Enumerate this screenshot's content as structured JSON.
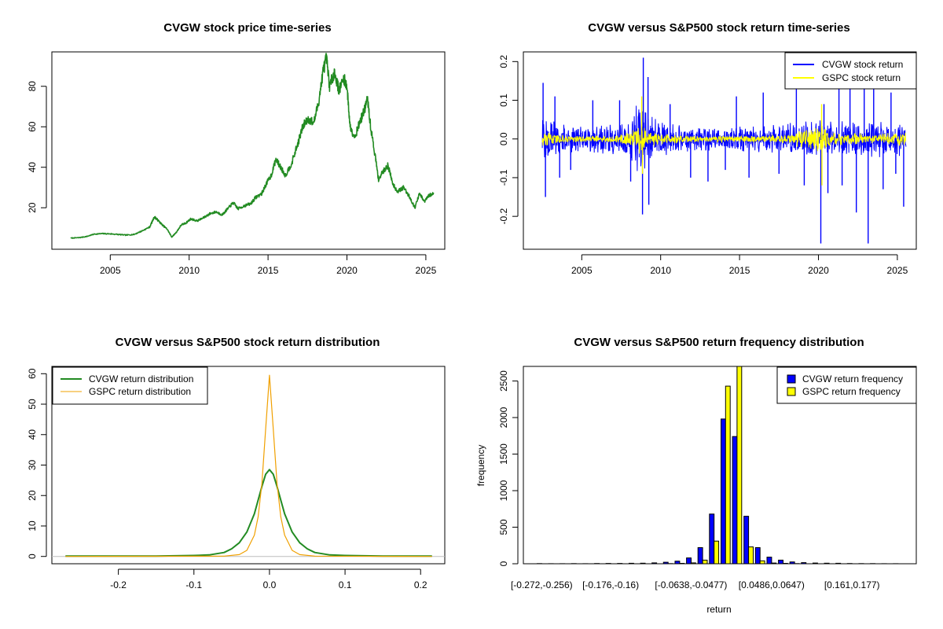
{
  "colors": {
    "cvgw_price": "#228b22",
    "cvgw_return": "#0000ff",
    "gspc_return": "#ffff00",
    "cvgw_density": "#228b22",
    "gspc_density": "#f0a000",
    "bar_outline": "#000000",
    "zero_line": "#bebebe"
  },
  "chart_data": [
    {
      "id": "price",
      "type": "line",
      "title": "CVGW stock price time-series",
      "xlabel": "",
      "ylabel": "",
      "xlim": [
        2001.3,
        2026.2
      ],
      "ylim": [
        -0.5,
        97
      ],
      "x_ticks": [
        2005,
        2010,
        2015,
        2020,
        2025
      ],
      "y_ticks": [
        20,
        40,
        60,
        80
      ],
      "grid": false,
      "series": [
        {
          "color": "#228b22",
          "points": [
            [
              2002.5,
              5
            ],
            [
              2003.0,
              5.2
            ],
            [
              2003.5,
              5.8
            ],
            [
              2004.0,
              7
            ],
            [
              2004.5,
              7.2
            ],
            [
              2005.0,
              7.1
            ],
            [
              2005.5,
              6.8
            ],
            [
              2006.0,
              6.5
            ],
            [
              2006.5,
              6.8
            ],
            [
              2007.0,
              8.5
            ],
            [
              2007.5,
              10.5
            ],
            [
              2007.8,
              15.5
            ],
            [
              2008.0,
              14
            ],
            [
              2008.3,
              11.5
            ],
            [
              2008.6,
              9.5
            ],
            [
              2008.9,
              5.5
            ],
            [
              2009.2,
              8
            ],
            [
              2009.5,
              11.5
            ],
            [
              2009.8,
              12.5
            ],
            [
              2010.1,
              14.5
            ],
            [
              2010.5,
              13.5
            ],
            [
              2010.9,
              15
            ],
            [
              2011.3,
              17
            ],
            [
              2011.7,
              18
            ],
            [
              2012.1,
              16.5
            ],
            [
              2012.5,
              20
            ],
            [
              2012.8,
              22.5
            ],
            [
              2013.1,
              19.5
            ],
            [
              2013.5,
              21
            ],
            [
              2013.9,
              22
            ],
            [
              2014.2,
              25
            ],
            [
              2014.6,
              27
            ],
            [
              2014.9,
              32
            ],
            [
              2015.2,
              36
            ],
            [
              2015.5,
              44
            ],
            [
              2015.8,
              40
            ],
            [
              2016.1,
              36
            ],
            [
              2016.5,
              42
            ],
            [
              2016.9,
              52
            ],
            [
              2017.2,
              60
            ],
            [
              2017.5,
              64
            ],
            [
              2017.9,
              62
            ],
            [
              2018.2,
              72
            ],
            [
              2018.5,
              88
            ],
            [
              2018.7,
              94
            ],
            [
              2018.9,
              80
            ],
            [
              2019.2,
              87
            ],
            [
              2019.5,
              78
            ],
            [
              2019.8,
              84
            ],
            [
              2020.0,
              80
            ],
            [
              2020.2,
              60
            ],
            [
              2020.5,
              55
            ],
            [
              2020.8,
              62
            ],
            [
              2021.1,
              68
            ],
            [
              2021.3,
              74
            ],
            [
              2021.5,
              60
            ],
            [
              2021.8,
              45
            ],
            [
              2022.0,
              34
            ],
            [
              2022.3,
              38
            ],
            [
              2022.6,
              41
            ],
            [
              2022.9,
              32
            ],
            [
              2023.2,
              28
            ],
            [
              2023.6,
              30
            ],
            [
              2024.0,
              25
            ],
            [
              2024.3,
              20
            ],
            [
              2024.6,
              27
            ],
            [
              2024.9,
              23
            ],
            [
              2025.2,
              26
            ],
            [
              2025.5,
              27
            ]
          ]
        }
      ]
    },
    {
      "id": "returns",
      "type": "line",
      "title": "CVGW versus S&P500 stock return time-series",
      "xlabel": "",
      "ylabel": "",
      "xlim": [
        2001.3,
        2026.2
      ],
      "ylim": [
        -0.285,
        0.225
      ],
      "x_ticks": [
        2005,
        2010,
        2015,
        2020,
        2025
      ],
      "y_ticks": [
        -0.2,
        -0.1,
        0.0,
        0.1,
        0.2
      ],
      "y_tick_labels": [
        "-0.2",
        "-0.1",
        "0.0",
        "0.1",
        "0.2"
      ],
      "legend": {
        "position": "top-right",
        "entries": [
          "CVGW stock return",
          "GSPC stock return"
        ]
      },
      "series": [
        {
          "name": "CVGW stock return",
          "color": "#0000ff",
          "x_start": 2002.5,
          "x_end": 2025.55,
          "volatility_envelope": [
            [
              2002.5,
              0.07
            ],
            [
              2003.5,
              0.05
            ],
            [
              2005.0,
              0.04
            ],
            [
              2007.0,
              0.045
            ],
            [
              2008.0,
              0.06
            ],
            [
              2008.8,
              0.12
            ],
            [
              2009.5,
              0.06
            ],
            [
              2011.0,
              0.04
            ],
            [
              2014.0,
              0.035
            ],
            [
              2017.0,
              0.04
            ],
            [
              2019.0,
              0.045
            ],
            [
              2020.3,
              0.06
            ],
            [
              2021.0,
              0.045
            ],
            [
              2023.0,
              0.05
            ],
            [
              2025.5,
              0.045
            ]
          ],
          "spikes": [
            [
              2002.55,
              0.145
            ],
            [
              2002.7,
              -0.15
            ],
            [
              2003.3,
              0.11
            ],
            [
              2003.6,
              -0.1
            ],
            [
              2004.3,
              -0.08
            ],
            [
              2005.7,
              0.1
            ],
            [
              2007.4,
              0.1
            ],
            [
              2008.1,
              -0.11
            ],
            [
              2008.9,
              0.21
            ],
            [
              2008.85,
              -0.195
            ],
            [
              2009.2,
              0.16
            ],
            [
              2009.25,
              -0.17
            ],
            [
              2010.6,
              0.09
            ],
            [
              2011.9,
              -0.1
            ],
            [
              2013.0,
              -0.11
            ],
            [
              2014.1,
              -0.08
            ],
            [
              2014.8,
              0.11
            ],
            [
              2015.6,
              -0.1
            ],
            [
              2016.5,
              0.12
            ],
            [
              2017.5,
              -0.09
            ],
            [
              2018.6,
              0.13
            ],
            [
              2019.1,
              -0.12
            ],
            [
              2020.15,
              -0.27
            ],
            [
              2020.35,
              0.09
            ],
            [
              2020.6,
              -0.14
            ],
            [
              2021.3,
              0.16
            ],
            [
              2021.5,
              -0.12
            ],
            [
              2022.0,
              0.13
            ],
            [
              2022.4,
              -0.19
            ],
            [
              2022.9,
              0.15
            ],
            [
              2023.15,
              -0.27
            ],
            [
              2023.5,
              0.14
            ],
            [
              2024.1,
              -0.13
            ],
            [
              2024.6,
              0.12
            ],
            [
              2024.9,
              -0.09
            ],
            [
              2025.4,
              -0.175
            ]
          ]
        },
        {
          "name": "GSPC stock return",
          "color": "#ffff00",
          "x_start": 2002.5,
          "x_end": 2025.55,
          "volatility_envelope": [
            [
              2002.5,
              0.02
            ],
            [
              2003.5,
              0.012
            ],
            [
              2005.0,
              0.008
            ],
            [
              2007.0,
              0.01
            ],
            [
              2008.0,
              0.02
            ],
            [
              2008.8,
              0.045
            ],
            [
              2009.5,
              0.02
            ],
            [
              2011.0,
              0.015
            ],
            [
              2012.0,
              0.009
            ],
            [
              2015.0,
              0.01
            ],
            [
              2018.0,
              0.012
            ],
            [
              2020.2,
              0.05
            ],
            [
              2020.6,
              0.02
            ],
            [
              2022.0,
              0.018
            ],
            [
              2023.5,
              0.012
            ],
            [
              2025.3,
              0.02
            ]
          ],
          "spikes": [
            [
              2008.8,
              0.11
            ],
            [
              2008.85,
              -0.09
            ],
            [
              2020.2,
              0.09
            ],
            [
              2020.22,
              -0.12
            ]
          ]
        }
      ]
    },
    {
      "id": "density",
      "type": "line",
      "title": "CVGW versus S&P500 stock return distribution",
      "xlabel": "",
      "ylabel": "",
      "xlim": [
        -0.288,
        0.232
      ],
      "ylim": [
        -2.4,
        62.4
      ],
      "x_ticks": [
        -0.2,
        -0.1,
        0.0,
        0.1,
        0.2
      ],
      "x_tick_labels": [
        "-0.2",
        "-0.1",
        "0.0",
        "0.1",
        "0.2"
      ],
      "y_ticks": [
        0,
        10,
        20,
        30,
        40,
        50,
        60
      ],
      "legend": {
        "position": "top-left",
        "entries": [
          "CVGW return distribution",
          "GSPC return distribution"
        ]
      },
      "series": [
        {
          "name": "CVGW return distribution",
          "color": "#228b22",
          "x": [
            -0.27,
            -0.15,
            -0.1,
            -0.08,
            -0.06,
            -0.05,
            -0.04,
            -0.03,
            -0.02,
            -0.015,
            -0.01,
            -0.005,
            0,
            0.005,
            0.01,
            0.015,
            0.02,
            0.03,
            0.04,
            0.05,
            0.06,
            0.08,
            0.1,
            0.15,
            0.215
          ],
          "y": [
            0.1,
            0.1,
            0.3,
            0.5,
            1.3,
            2.5,
            4.5,
            8,
            14,
            18.5,
            23,
            27,
            28.5,
            27,
            23,
            18.5,
            14,
            8,
            4.5,
            2.5,
            1.3,
            0.5,
            0.3,
            0.1,
            0.1
          ]
        },
        {
          "name": "GSPC return distribution",
          "color": "#f0a000",
          "x": [
            -0.27,
            -0.06,
            -0.04,
            -0.03,
            -0.02,
            -0.015,
            -0.01,
            -0.005,
            0,
            0.005,
            0.01,
            0.015,
            0.02,
            0.03,
            0.04,
            0.06,
            0.215
          ],
          "y": [
            0,
            0.1,
            0.6,
            2,
            7,
            13,
            24,
            42,
            59.5,
            42,
            24,
            13,
            7,
            2,
            0.6,
            0.1,
            0
          ]
        }
      ]
    },
    {
      "id": "histogram",
      "type": "bar",
      "title": "CVGW versus S&P500 return frequency distribution",
      "xlabel": "return",
      "ylabel": "frequency",
      "ylim": [
        0,
        2700
      ],
      "y_ticks": [
        0,
        500,
        1000,
        1500,
        2000,
        2500
      ],
      "x_tick_labels": [
        {
          "label": "[-0.272,-0.256)",
          "bin": 0
        },
        {
          "label": "[-0.176,-0.16)",
          "bin": 6
        },
        {
          "label": "[-0.0638,-0.0477)",
          "bin": 13
        },
        {
          "label": "[0.0486,0.0647)",
          "bin": 20
        },
        {
          "label": "[0.161,0.177)",
          "bin": 27
        }
      ],
      "legend": {
        "position": "top-right",
        "entries": [
          "CVGW return frequency",
          "GSPC return frequency"
        ]
      },
      "series": [
        {
          "name": "CVGW return frequency",
          "color": "#0000ff",
          "values": [
            2,
            1,
            1,
            2,
            1,
            3,
            4,
            4,
            6,
            8,
            12,
            20,
            35,
            80,
            220,
            680,
            1980,
            1740,
            650,
            220,
            90,
            50,
            25,
            15,
            10,
            8,
            6,
            3,
            2,
            2,
            1,
            1
          ]
        },
        {
          "name": "GSPC return frequency",
          "color": "#ffff00",
          "values": [
            0,
            0,
            0,
            0,
            0,
            0,
            0,
            0,
            0,
            0,
            0,
            2,
            5,
            12,
            50,
            310,
            2430,
            2700,
            230,
            40,
            10,
            5,
            2,
            0,
            0,
            0,
            0,
            0,
            0,
            0,
            0,
            0
          ]
        }
      ]
    }
  ]
}
